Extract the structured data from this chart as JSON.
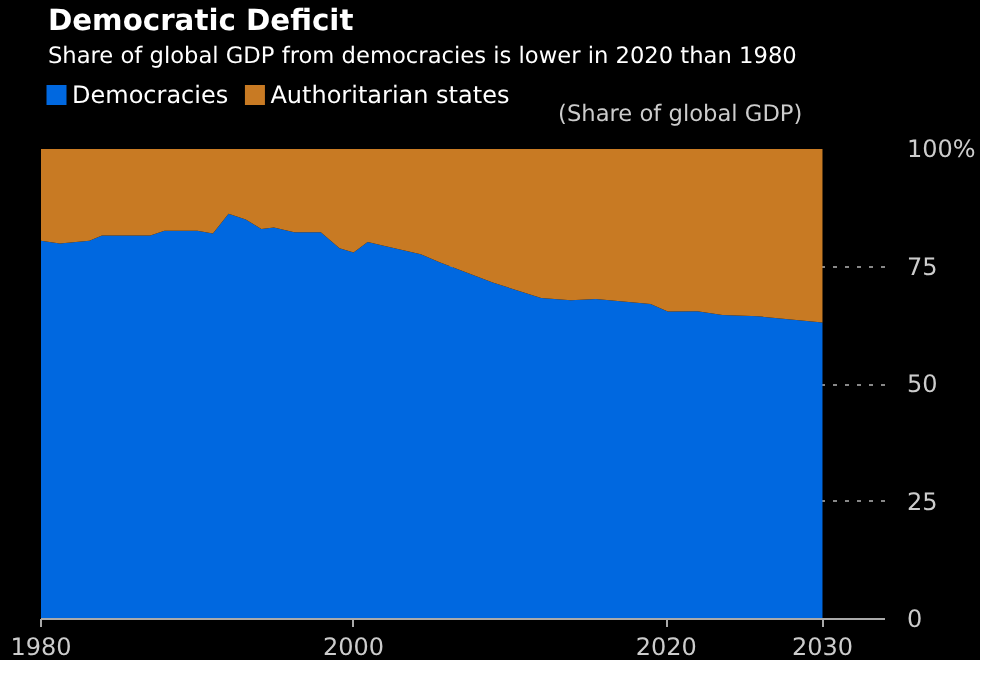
{
  "chart_data": {
    "type": "area",
    "stacked": true,
    "title": "Democratic Deficit",
    "subtitle": "Share of global GDP from democracies is lower in 2020 than 1980",
    "ylabel": "(Share of global GDP)",
    "x": [
      1980,
      1981.2,
      1983.1,
      1983.9,
      1987,
      1987.9,
      1990,
      1991,
      1992,
      1993.1,
      1994.1,
      1994.9,
      1996.2,
      1997.9,
      1999.1,
      2000,
      2000.9,
      2002.2,
      2004.3,
      2005.5,
      2008.9,
      2012,
      2013.9,
      2015.5,
      2019,
      2020.1,
      2022,
      2023.6,
      2025.9,
      2030
    ],
    "series": [
      {
        "name": "Democracies",
        "color": "#0068e0",
        "values": [
          80.5,
          79.9,
          80.5,
          81.6,
          81.6,
          82.6,
          82.6,
          82,
          86.2,
          85,
          83,
          83.3,
          82.3,
          82.3,
          78.9,
          78,
          80.2,
          79.2,
          77.6,
          75.9,
          71.6,
          68.3,
          67.8,
          68.1,
          67,
          65.4,
          65.5,
          64.7,
          64.4,
          63.1
        ]
      },
      {
        "name": "Authoritarian states",
        "color": "#c87a23",
        "values": [
          19.5,
          20.1,
          19.5,
          18.4,
          18.4,
          17.4,
          17.4,
          18,
          13.8,
          15,
          17,
          16.7,
          17.7,
          17.7,
          21.1,
          22,
          19.8,
          20.8,
          22.4,
          24.1,
          28.4,
          31.7,
          32.2,
          31.9,
          33,
          34.6,
          34.5,
          35.3,
          35.6,
          36.9
        ]
      }
    ],
    "xlim": [
      1980,
      2034
    ],
    "xticks": [
      1980,
      2000,
      2020,
      2030
    ],
    "ylim": [
      0,
      100
    ],
    "yticks": [
      0,
      25,
      50,
      75,
      {
        "value": 100,
        "label": "100%"
      }
    ],
    "grid": "y",
    "legend": "top left"
  }
}
